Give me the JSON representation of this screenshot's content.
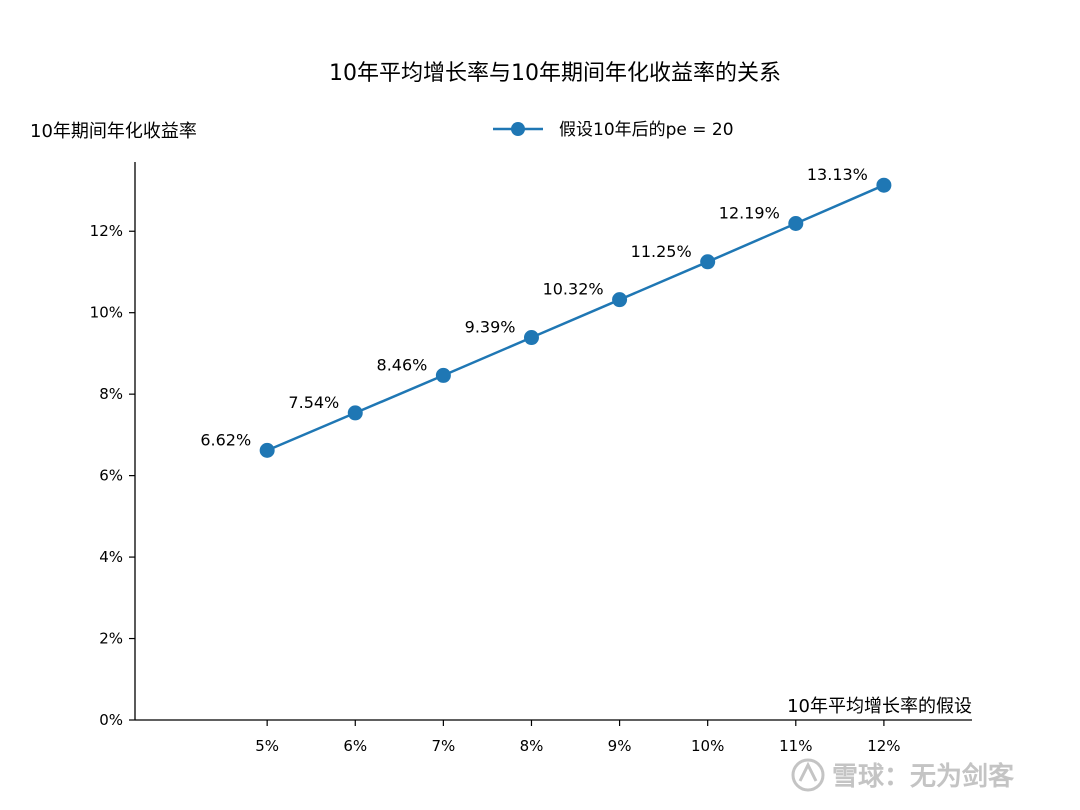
{
  "chart_data": {
    "type": "line",
    "title": "10年平均增长率与10年期间年化收益率的关系",
    "xlabel": "10年平均增长率的假设",
    "ylabel": "10年期间年化收益率",
    "categories": [
      "5%",
      "6%",
      "7%",
      "8%",
      "9%",
      "10%",
      "11%",
      "12%"
    ],
    "x": [
      5,
      6,
      7,
      8,
      9,
      10,
      11,
      12
    ],
    "series": [
      {
        "name": "假设10年后的pe = 20",
        "values": [
          6.62,
          7.54,
          8.46,
          9.39,
          10.32,
          11.25,
          12.19,
          13.13
        ],
        "labels": [
          "6.62%",
          "7.54%",
          "8.46%",
          "9.39%",
          "10.32%",
          "11.25%",
          "12.19%",
          "13.13%"
        ],
        "color": "#1f77b4"
      }
    ],
    "xlim": [
      3.5,
      13
    ],
    "ylim": [
      0,
      13.7
    ],
    "yticks": [
      0,
      2,
      4,
      6,
      8,
      10,
      12
    ],
    "ytick_labels": [
      "0%",
      "2%",
      "4%",
      "6%",
      "8%",
      "10%",
      "12%"
    ],
    "grid": false,
    "legend_position": "top"
  },
  "watermark": {
    "text": "雪球：无为剑客"
  }
}
